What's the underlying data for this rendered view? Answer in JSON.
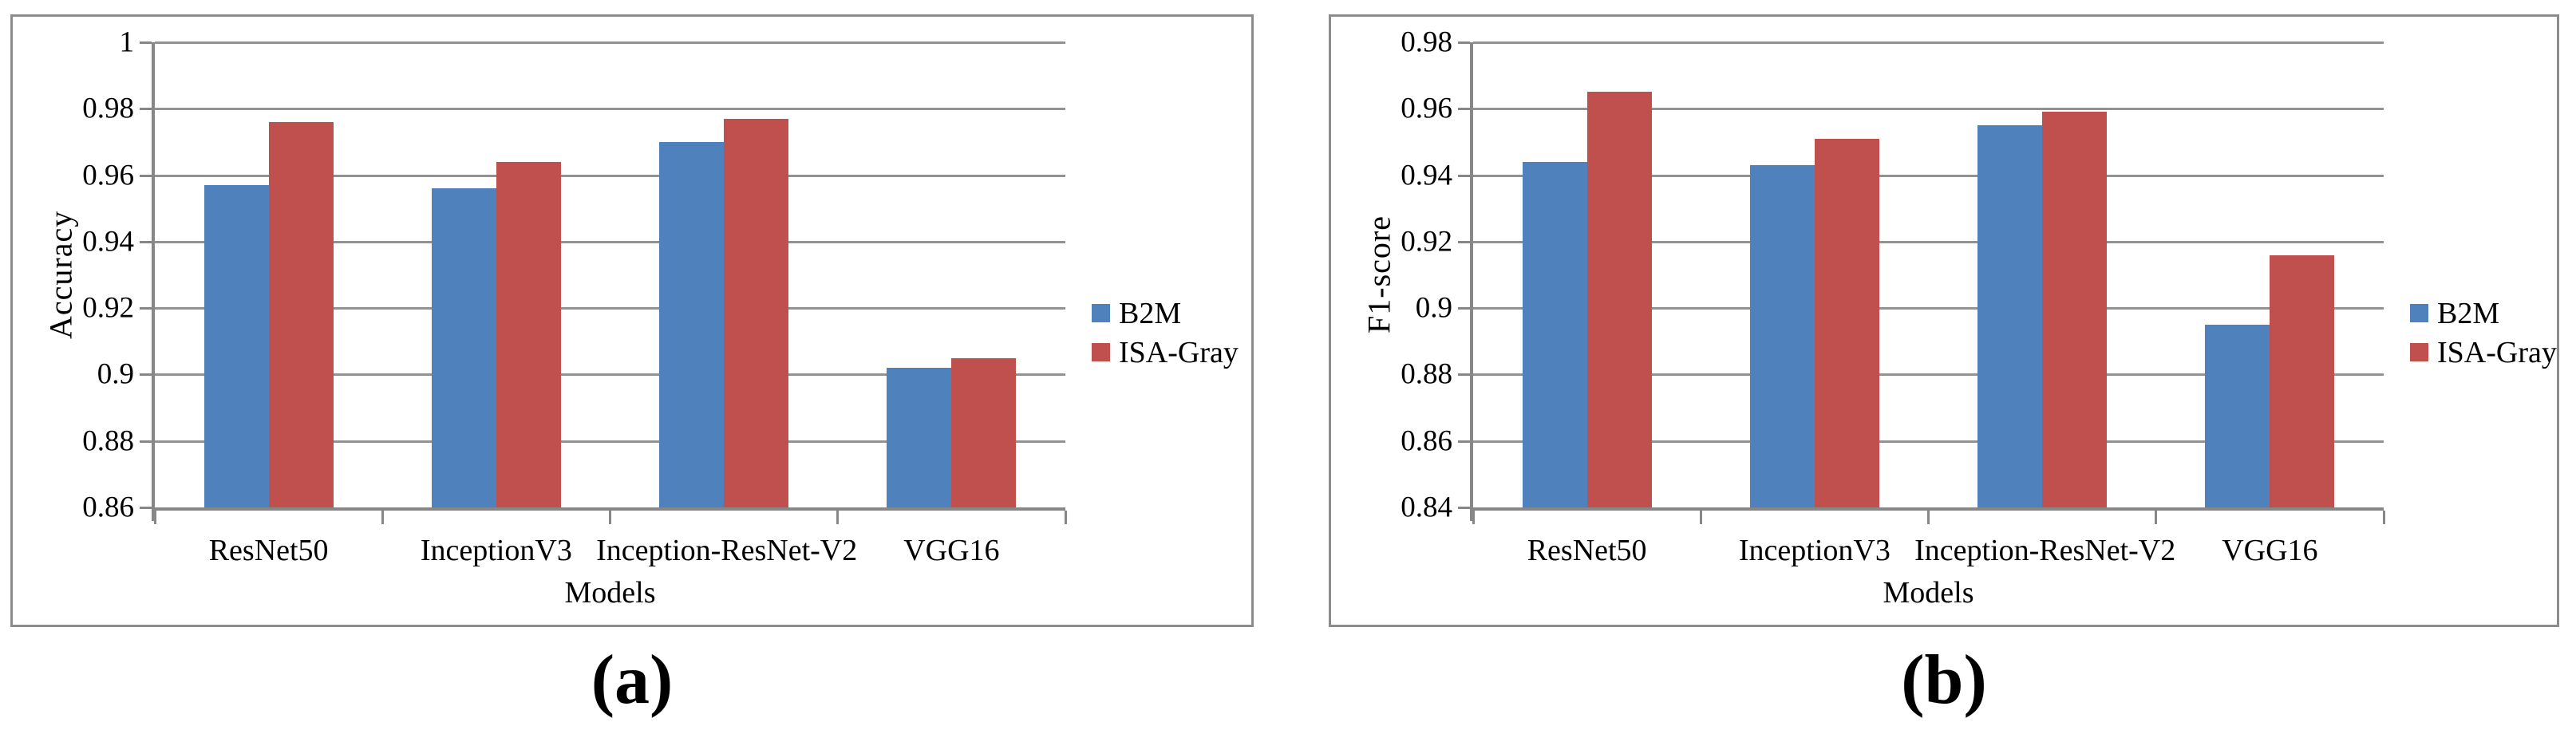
{
  "captions": [
    "(a)",
    "(b)"
  ],
  "colors": {
    "b2m": "#4F81BD",
    "isa_gray": "#C0504D",
    "gridline": "#929292",
    "axis": "#878787",
    "panel_border": "#8C8C8C",
    "text": "#000000"
  },
  "chart_data": [
    {
      "type": "bar",
      "title": "",
      "ylabel": "Accuracy",
      "xlabel": "Models",
      "categories": [
        "ResNet50",
        "InceptionV3",
        "Inception-ResNet-V2",
        "VGG16"
      ],
      "series": [
        {
          "name": "B2M",
          "color": "#4F81BD",
          "values": [
            0.957,
            0.956,
            0.97,
            0.902
          ]
        },
        {
          "name": "ISA-Gray",
          "color": "#C0504D",
          "values": [
            0.976,
            0.964,
            0.977,
            0.905
          ]
        }
      ],
      "ylim": [
        0.86,
        1.0
      ],
      "yticks": [
        "0.86",
        "0.88",
        "0.9",
        "0.92",
        "0.94",
        "0.96",
        "0.98",
        "1"
      ],
      "grid": true,
      "legend_position": "right"
    },
    {
      "type": "bar",
      "title": "",
      "ylabel": "F1-score",
      "xlabel": "Models",
      "categories": [
        "ResNet50",
        "InceptionV3",
        "Inception-ResNet-V2",
        "VGG16"
      ],
      "series": [
        {
          "name": "B2M",
          "color": "#4F81BD",
          "values": [
            0.944,
            0.943,
            0.955,
            0.895
          ]
        },
        {
          "name": "ISA-Gray",
          "color": "#C0504D",
          "values": [
            0.965,
            0.951,
            0.959,
            0.916
          ]
        }
      ],
      "ylim": [
        0.84,
        0.98
      ],
      "yticks": [
        "0.84",
        "0.86",
        "0.88",
        "0.9",
        "0.92",
        "0.94",
        "0.96",
        "0.98"
      ],
      "grid": true,
      "legend_position": "right"
    }
  ]
}
